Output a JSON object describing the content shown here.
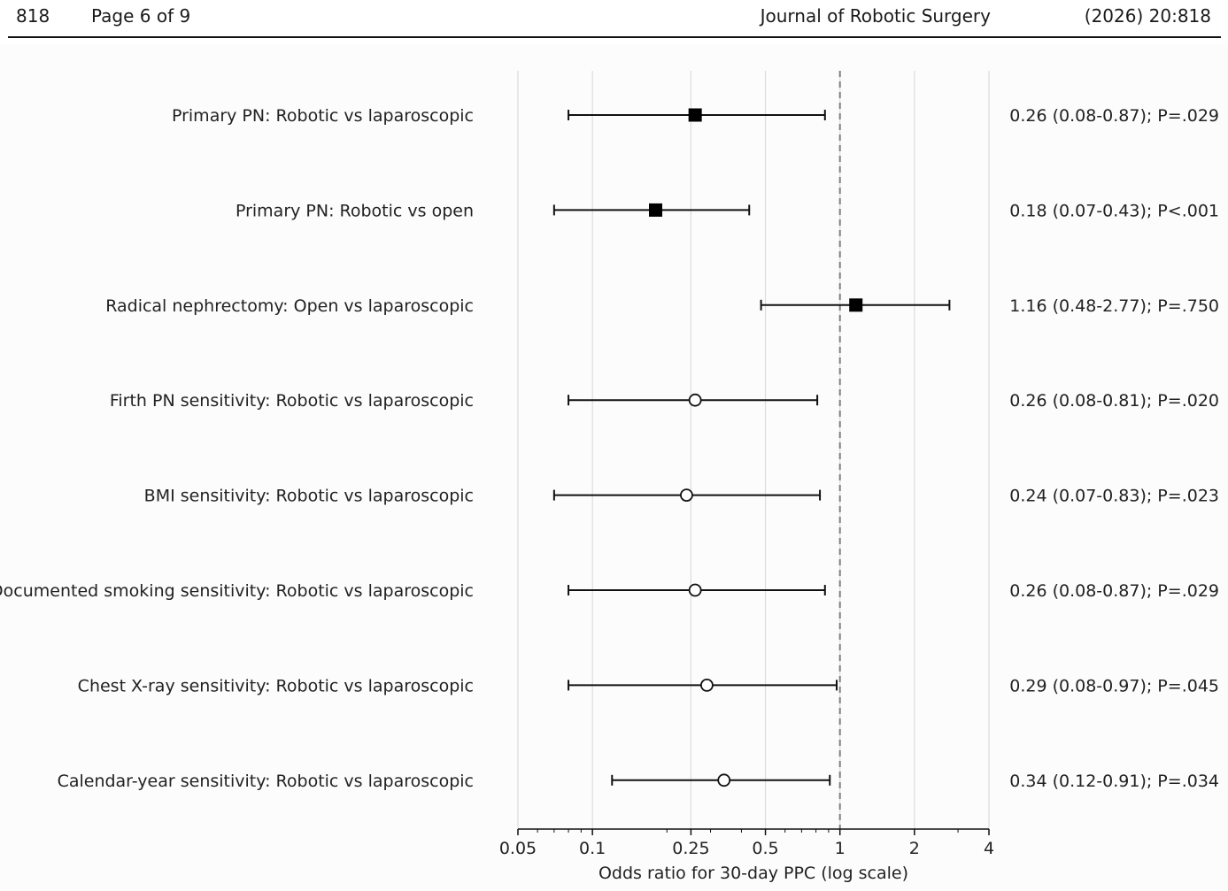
{
  "header": {
    "page_number": "818",
    "page_of": "Page 6 of 9",
    "journal": "Journal of Robotic Surgery",
    "citation": "(2026)  20:818"
  },
  "chart_data": {
    "type": "forest",
    "title": "",
    "xlabel": "Odds ratio for 30-day PPC (log scale)",
    "ylabel": "",
    "x_scale": "log",
    "xlim": [
      0.05,
      4
    ],
    "x_ticks": [
      0.05,
      0.1,
      0.25,
      0.5,
      1,
      2,
      4
    ],
    "x_tick_labels": [
      "0.05",
      "0.1",
      "0.25",
      "0.5",
      "1",
      "2",
      "4"
    ],
    "reference_line": 1,
    "grid": "vertical",
    "rows": [
      {
        "label": "Primary PN: Robotic vs laparoscopic",
        "or": 0.26,
        "lo": 0.08,
        "hi": 0.87,
        "marker": "filled-square",
        "annotation": "0.26 (0.08-0.87); P=.029"
      },
      {
        "label": "Primary PN: Robotic vs open",
        "or": 0.18,
        "lo": 0.07,
        "hi": 0.43,
        "marker": "filled-square",
        "annotation": "0.18 (0.07-0.43); P<.001"
      },
      {
        "label": "Radical nephrectomy: Open vs laparoscopic",
        "or": 1.16,
        "lo": 0.48,
        "hi": 2.77,
        "marker": "filled-square",
        "annotation": "1.16 (0.48-2.77); P=.750"
      },
      {
        "label": "Firth PN sensitivity: Robotic vs laparoscopic",
        "or": 0.26,
        "lo": 0.08,
        "hi": 0.81,
        "marker": "open-circle",
        "annotation": "0.26 (0.08-0.81); P=.020"
      },
      {
        "label": "BMI sensitivity: Robotic vs laparoscopic",
        "or": 0.24,
        "lo": 0.07,
        "hi": 0.83,
        "marker": "open-circle",
        "annotation": "0.24 (0.07-0.83); P=.023"
      },
      {
        "label": "Documented smoking sensitivity: Robotic vs laparoscopic",
        "or": 0.26,
        "lo": 0.08,
        "hi": 0.87,
        "marker": "open-circle",
        "annotation": "0.26 (0.08-0.87); P=.029"
      },
      {
        "label": "Chest X-ray sensitivity: Robotic vs laparoscopic",
        "or": 0.29,
        "lo": 0.08,
        "hi": 0.97,
        "marker": "open-circle",
        "annotation": "0.29 (0.08-0.97); P=.045"
      },
      {
        "label": "Calendar-year sensitivity: Robotic vs laparoscopic",
        "or": 0.34,
        "lo": 0.12,
        "hi": 0.91,
        "marker": "open-circle",
        "annotation": "0.34 (0.12-0.91); P=.034"
      }
    ]
  }
}
